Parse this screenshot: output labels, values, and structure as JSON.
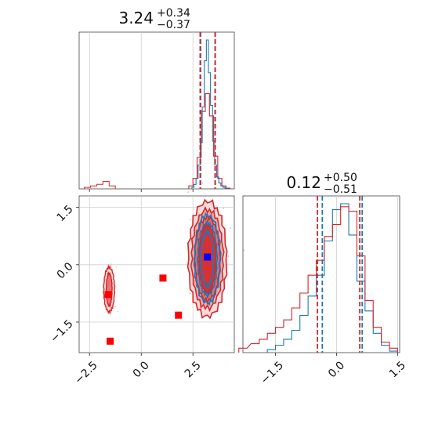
{
  "chart_data": {
    "type": "corner",
    "colors": {
      "series_a": "#1f77b4",
      "series_b": "#d62728",
      "marker_blue": "#0000ff",
      "marker_red": "#ff0000"
    },
    "grid": true,
    "panels": [
      {
        "id": "hist-param-1",
        "type": "histogram",
        "title": {
          "value": "3.24",
          "upper": "+0.34",
          "lower": "−0.37"
        },
        "xlim": [
          -3.0,
          4.5
        ],
        "quantiles_blue": [
          2.87,
          3.58
        ],
        "quantiles_red": [
          2.85,
          3.57
        ],
        "series_blue": {
          "x": [
            2.5,
            2.6,
            2.7,
            2.8,
            2.9,
            3.0,
            3.1,
            3.2,
            3.3,
            3.4,
            3.5,
            3.6,
            3.7,
            3.8,
            3.9,
            4.0,
            4.1,
            4.2
          ],
          "y": [
            0.01,
            0.03,
            0.07,
            0.16,
            0.31,
            0.55,
            0.86,
            1.0,
            0.78,
            0.56,
            0.32,
            0.16,
            0.08,
            0.04,
            0.02,
            0.01,
            0.005,
            0.0
          ]
        },
        "series_red": {
          "x": [
            -2.6,
            -2.3,
            -2.0,
            -1.7,
            -1.4,
            2.4,
            2.6,
            2.8,
            3.0,
            3.2,
            3.4,
            3.6,
            3.8,
            4.0,
            4.2
          ],
          "y": [
            0.01,
            0.02,
            0.03,
            0.05,
            0.02,
            0.02,
            0.07,
            0.21,
            0.52,
            0.64,
            0.49,
            0.22,
            0.07,
            0.02,
            0.005
          ]
        }
      },
      {
        "id": "scatter-2d",
        "type": "contour",
        "xlim": [
          -3.0,
          4.5
        ],
        "ylim": [
          -2.3,
          1.8
        ],
        "xticks": [
          "−2.5",
          "0.0",
          "2.5"
        ],
        "yticks": [
          "1.5",
          "0.0",
          "−1.5"
        ],
        "xtick_values": [
          -2.5,
          0.0,
          2.5
        ],
        "ytick_values": [
          1.5,
          0.0,
          -1.5
        ],
        "markers_red": [
          {
            "x": -1.6,
            "y": -0.78
          },
          {
            "x": 1.05,
            "y": -0.35
          },
          {
            "x": 1.8,
            "y": -1.32
          },
          {
            "x": -1.5,
            "y": -2.0
          }
        ],
        "marker_blue": {
          "x": 3.2,
          "y": 0.2
        },
        "contour_red": {
          "cx": 3.2,
          "cy": 0.15,
          "levels": [
            [
              0.4,
              0.88
            ],
            [
              0.6,
              1.08
            ],
            [
              0.76,
              1.28
            ],
            [
              0.92,
              1.5
            ]
          ]
        },
        "contour_blue": {
          "cx": 3.2,
          "cy": 0.15,
          "levels": [
            [
              0.3,
              0.7
            ],
            [
              0.46,
              0.94
            ],
            [
              0.62,
              1.14
            ]
          ]
        },
        "contour_red_minor": {
          "cx": -1.55,
          "cy": -0.65,
          "levels": [
            [
              0.14,
              0.42
            ],
            [
              0.26,
              0.58
            ]
          ]
        }
      },
      {
        "id": "hist-param-2",
        "type": "histogram",
        "title": {
          "value": "0.12",
          "upper": "+0.50",
          "lower": "−0.51"
        },
        "xlim": [
          -2.3,
          1.55
        ],
        "xticks": [
          "−1.5",
          "0.0",
          "1.5"
        ],
        "xtick_values": [
          -1.5,
          0.0,
          1.5
        ],
        "quantiles_blue": [
          -0.35,
          0.63
        ],
        "quantiles_red": [
          -0.47,
          0.57
        ],
        "series_blue": {
          "x": [
            -1.6,
            -1.4,
            -1.2,
            -1.0,
            -0.8,
            -0.6,
            -0.4,
            -0.2,
            0.0,
            0.2,
            0.4,
            0.6,
            0.8,
            1.0,
            1.2,
            1.4
          ],
          "y": [
            0.02,
            0.05,
            0.09,
            0.15,
            0.25,
            0.38,
            0.52,
            0.75,
            0.96,
            1.0,
            0.79,
            0.48,
            0.28,
            0.13,
            0.05,
            0.01
          ]
        },
        "series_red": {
          "x": [
            -2.3,
            -2.0,
            -1.8,
            -1.6,
            -1.4,
            -1.2,
            -1.0,
            -0.8,
            -0.6,
            -0.4,
            -0.2,
            0.0,
            0.2,
            0.4,
            0.6,
            0.8,
            1.0,
            1.2,
            1.4
          ],
          "y": [
            0.03,
            0.06,
            0.09,
            0.13,
            0.17,
            0.22,
            0.3,
            0.4,
            0.52,
            0.62,
            0.78,
            0.86,
            0.98,
            0.95,
            0.65,
            0.35,
            0.17,
            0.07,
            0.03
          ]
        }
      }
    ]
  }
}
